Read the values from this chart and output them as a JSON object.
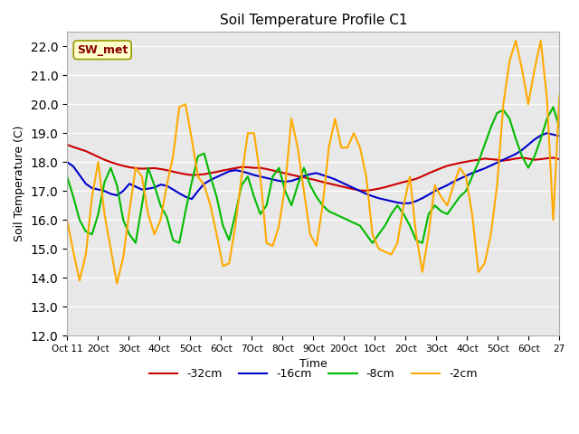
{
  "title": "Soil Temperature Profile C1",
  "xlabel": "Time",
  "ylabel": "Soil Temperature (C)",
  "annotation": "SW_met",
  "ylim": [
    12.0,
    22.5
  ],
  "yticks": [
    12.0,
    13.0,
    14.0,
    15.0,
    16.0,
    17.0,
    18.0,
    19.0,
    20.0,
    21.0,
    22.0
  ],
  "bg_color": "#e8e8e8",
  "grid_color": "white",
  "series": {
    "-32cm": {
      "color": "#cc0000",
      "linewidth": 1.5
    },
    "-16cm": {
      "color": "#0000cc",
      "linewidth": 1.5
    },
    "-8cm": {
      "color": "#00bb00",
      "linewidth": 1.5
    },
    "-2cm": {
      "color": "#ffaa00",
      "linewidth": 1.5
    }
  },
  "xtick_labels": [
    "Oct 1",
    "2Oct",
    "3Oct",
    "4Oct",
    "5Oct",
    "6Oct",
    "7Oct",
    "8Oct",
    "9Oct",
    "20Oct",
    "1Oct",
    "2Oct",
    "3Oct",
    "4Oct",
    "5Oct",
    "6Oct",
    "27"
  ],
  "y_32cm": [
    18.6,
    18.52,
    18.45,
    18.38,
    18.28,
    18.18,
    18.08,
    18.0,
    17.93,
    17.87,
    17.82,
    17.79,
    17.77,
    17.78,
    17.79,
    17.76,
    17.72,
    17.67,
    17.62,
    17.58,
    17.55,
    17.56,
    17.58,
    17.62,
    17.66,
    17.71,
    17.75,
    17.79,
    17.83,
    17.82,
    17.8,
    17.8,
    17.76,
    17.71,
    17.66,
    17.61,
    17.56,
    17.51,
    17.47,
    17.42,
    17.37,
    17.31,
    17.26,
    17.21,
    17.16,
    17.11,
    17.06,
    17.02,
    17.01,
    17.04,
    17.08,
    17.13,
    17.19,
    17.25,
    17.31,
    17.36,
    17.42,
    17.51,
    17.61,
    17.7,
    17.79,
    17.87,
    17.92,
    17.97,
    18.01,
    18.05,
    18.08,
    18.12,
    18.1,
    18.08,
    18.05,
    18.08,
    18.12,
    18.15,
    18.12,
    18.08,
    18.1,
    18.13,
    18.15,
    18.1
  ],
  "y_16cm": [
    18.0,
    17.85,
    17.55,
    17.25,
    17.1,
    17.05,
    17.0,
    16.9,
    16.85,
    17.0,
    17.25,
    17.15,
    17.05,
    17.08,
    17.12,
    17.22,
    17.18,
    17.05,
    16.92,
    16.8,
    16.72,
    17.0,
    17.25,
    17.38,
    17.48,
    17.58,
    17.68,
    17.72,
    17.68,
    17.62,
    17.55,
    17.5,
    17.45,
    17.4,
    17.35,
    17.32,
    17.35,
    17.42,
    17.52,
    17.58,
    17.62,
    17.55,
    17.48,
    17.4,
    17.3,
    17.2,
    17.1,
    17.0,
    16.9,
    16.82,
    16.75,
    16.7,
    16.65,
    16.6,
    16.57,
    16.58,
    16.65,
    16.75,
    16.87,
    17.0,
    17.1,
    17.2,
    17.32,
    17.42,
    17.52,
    17.62,
    17.7,
    17.78,
    17.88,
    17.98,
    18.08,
    18.18,
    18.28,
    18.42,
    18.6,
    18.78,
    18.92,
    19.0,
    18.95,
    18.9
  ],
  "y_8cm": [
    17.5,
    16.8,
    16.0,
    15.6,
    15.5,
    16.2,
    17.3,
    17.8,
    17.2,
    16.0,
    15.5,
    15.2,
    16.5,
    17.8,
    17.2,
    16.5,
    16.1,
    15.3,
    15.2,
    16.3,
    17.3,
    18.2,
    18.3,
    17.5,
    16.8,
    15.8,
    15.3,
    16.2,
    17.2,
    17.5,
    16.8,
    16.2,
    16.5,
    17.5,
    17.8,
    17.0,
    16.5,
    17.2,
    17.8,
    17.2,
    16.8,
    16.5,
    16.3,
    16.2,
    16.1,
    16.0,
    15.9,
    15.8,
    15.5,
    15.2,
    15.5,
    15.8,
    16.2,
    16.5,
    16.2,
    15.8,
    15.3,
    15.2,
    16.2,
    16.5,
    16.3,
    16.2,
    16.5,
    16.8,
    17.0,
    17.5,
    18.0,
    18.6,
    19.2,
    19.7,
    19.8,
    19.5,
    18.8,
    18.2,
    17.8,
    18.2,
    18.8,
    19.5,
    19.9,
    19.2
  ],
  "y_2cm": [
    16.0,
    14.9,
    13.9,
    14.8,
    16.8,
    18.0,
    16.2,
    15.0,
    13.8,
    14.7,
    16.3,
    17.8,
    17.5,
    16.2,
    15.5,
    16.0,
    17.2,
    18.2,
    19.9,
    20.0,
    18.8,
    17.5,
    17.2,
    16.5,
    15.5,
    14.4,
    14.5,
    15.8,
    17.5,
    19.0,
    19.0,
    17.5,
    15.2,
    15.1,
    15.8,
    17.2,
    19.5,
    18.5,
    17.0,
    15.5,
    15.1,
    16.5,
    18.5,
    19.5,
    18.5,
    18.5,
    19.0,
    18.5,
    17.5,
    15.5,
    15.0,
    14.9,
    14.8,
    15.2,
    16.5,
    17.5,
    15.5,
    14.2,
    15.5,
    17.2,
    16.8,
    16.5,
    17.2,
    17.8,
    17.5,
    16.2,
    14.2,
    14.5,
    15.5,
    17.2,
    20.0,
    21.5,
    22.2,
    21.2,
    20.0,
    21.2,
    22.2,
    20.2,
    16.0,
    20.3
  ]
}
